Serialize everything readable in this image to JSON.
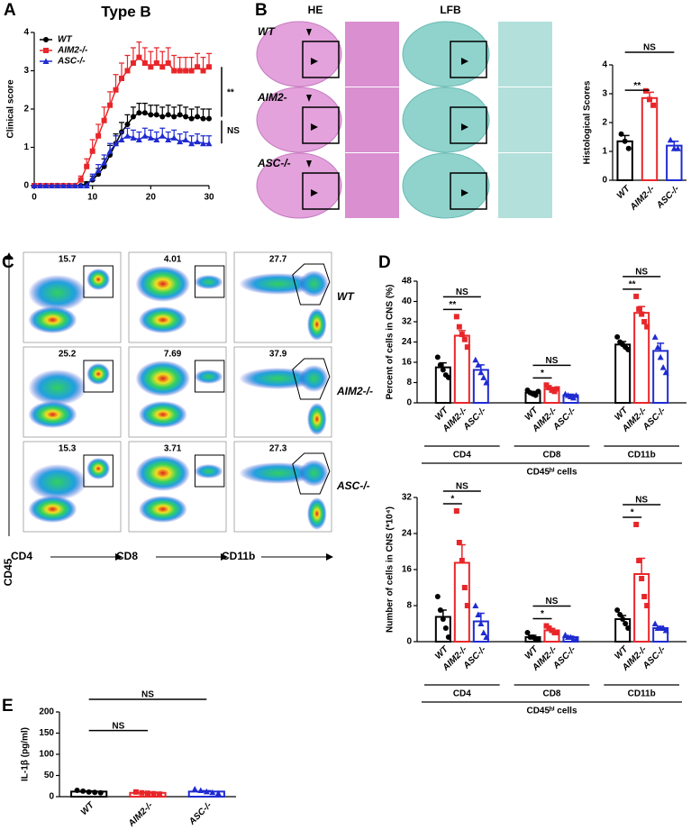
{
  "panel_labels": [
    "A",
    "B",
    "C",
    "D",
    "E"
  ],
  "histology": {
    "stains": [
      "HE",
      "LFB"
    ],
    "rows": [
      "WT",
      "AIM2-",
      "ASC-/-"
    ]
  },
  "flow": {
    "y_label": "CD45",
    "x_labels": [
      "CD4",
      "CD8",
      "CD11b"
    ],
    "rows": [
      "WT",
      "AIM2-/-",
      "ASC-/-"
    ],
    "gate_values": [
      [
        15.7,
        4.01,
        27.7
      ],
      [
        25.2,
        7.69,
        37.9
      ],
      [
        15.3,
        3.71,
        27.3
      ]
    ]
  },
  "chart_data": [
    {
      "type": "line",
      "title": "Type B",
      "y_label": "Clinical score",
      "x": [
        0,
        1,
        2,
        3,
        4,
        5,
        6,
        7,
        8,
        9,
        10,
        11,
        12,
        13,
        14,
        15,
        16,
        17,
        18,
        19,
        20,
        21,
        22,
        23,
        24,
        25,
        26,
        27,
        28,
        29,
        30
      ],
      "xlim": [
        0,
        30
      ],
      "xticks": [
        0,
        10,
        20,
        30
      ],
      "ylim": [
        0,
        4
      ],
      "yticks": [
        0,
        1,
        2,
        3,
        4
      ],
      "series": [
        {
          "name": "WT",
          "color": "#000000",
          "marker": "circle",
          "values": [
            0,
            0,
            0,
            0,
            0,
            0,
            0,
            0,
            0,
            0.05,
            0.15,
            0.3,
            0.5,
            0.8,
            1.1,
            1.4,
            1.6,
            1.8,
            1.9,
            1.9,
            1.85,
            1.85,
            1.8,
            1.85,
            1.8,
            1.85,
            1.8,
            1.75,
            1.8,
            1.75,
            1.75
          ],
          "errors": [
            0,
            0,
            0,
            0,
            0,
            0,
            0,
            0,
            0,
            0.05,
            0.1,
            0.15,
            0.2,
            0.25,
            0.25,
            0.25,
            0.25,
            0.25,
            0.25,
            0.25,
            0.25,
            0.25,
            0.25,
            0.25,
            0.25,
            0.25,
            0.25,
            0.25,
            0.25,
            0.25,
            0.25
          ]
        },
        {
          "name": "AIM2-/-",
          "color": "#e8262a",
          "marker": "square",
          "values": [
            0,
            0,
            0,
            0,
            0,
            0,
            0,
            0,
            0.15,
            0.5,
            0.9,
            1.3,
            1.7,
            2.1,
            2.5,
            2.8,
            3.0,
            3.2,
            3.35,
            3.2,
            3.1,
            3.2,
            3.1,
            3.2,
            3.0,
            3.0,
            3.0,
            3.0,
            3.1,
            3.0,
            3.1
          ],
          "errors": [
            0,
            0,
            0,
            0,
            0,
            0,
            0,
            0,
            0.1,
            0.2,
            0.3,
            0.3,
            0.35,
            0.35,
            0.4,
            0.4,
            0.4,
            0.4,
            0.4,
            0.4,
            0.4,
            0.4,
            0.4,
            0.4,
            0.4,
            0.35,
            0.35,
            0.35,
            0.35,
            0.35,
            0.35
          ]
        },
        {
          "name": "ASC-/-",
          "color": "#1f2bd1",
          "marker": "triangle",
          "values": [
            0,
            0,
            0,
            0,
            0,
            0,
            0,
            0,
            0,
            0,
            0.2,
            0.4,
            0.6,
            0.9,
            1.1,
            1.2,
            1.3,
            1.25,
            1.2,
            1.3,
            1.25,
            1.2,
            1.3,
            1.2,
            1.25,
            1.15,
            1.2,
            1.1,
            1.15,
            1.1,
            1.1
          ],
          "errors": [
            0,
            0,
            0,
            0,
            0,
            0,
            0,
            0,
            0,
            0,
            0.1,
            0.15,
            0.2,
            0.2,
            0.2,
            0.2,
            0.2,
            0.2,
            0.2,
            0.2,
            0.2,
            0.2,
            0.2,
            0.2,
            0.2,
            0.2,
            0.2,
            0.2,
            0.2,
            0.2,
            0.2
          ]
        }
      ],
      "annotations": [
        "**",
        "NS"
      ]
    },
    {
      "type": "bar",
      "y_label": "Histological Scores",
      "categories": [
        "WT",
        "AIM2-/-",
        "ASC-/-"
      ],
      "colors": [
        "#000000",
        "#e8262a",
        "#1f2bd1"
      ],
      "values": [
        1.35,
        2.85,
        1.2
      ],
      "errors": [
        0.2,
        0.2,
        0.15
      ],
      "points": [
        [
          1.6,
          1.35,
          1.1
        ],
        [
          3.1,
          2.8,
          2.6
        ],
        [
          1.4,
          1.1,
          1.1
        ]
      ],
      "ylim": [
        0,
        4
      ],
      "yticks": [
        0,
        1,
        2,
        3,
        4
      ],
      "annotations": [
        "NS",
        "**"
      ]
    },
    {
      "type": "grouped_bar",
      "y_label": "Percent of cells in CNS (%)",
      "groups": [
        "CD4",
        "CD8",
        "CD11b"
      ],
      "group_label": "CD45ʰⁱ cells",
      "ylim": [
        0,
        48
      ],
      "yticks": [
        0,
        8,
        16,
        24,
        32,
        40,
        48
      ],
      "series": [
        {
          "name": "WT",
          "color": "#000000",
          "values": [
            14,
            4,
            23
          ],
          "errors": [
            1.8,
            0.5,
            1.2
          ],
          "points": [
            [
              18,
              15,
              13,
              11,
              10
            ],
            [
              5,
              4,
              3.5,
              3,
              4.5
            ],
            [
              26,
              24,
              23,
              22,
              21
            ]
          ]
        },
        {
          "name": "AIM2-/-",
          "color": "#e8262a",
          "values": [
            26.5,
            5.5,
            35.5
          ],
          "errors": [
            2,
            0.6,
            2.5
          ],
          "points": [
            [
              34,
              30,
              27,
              25,
              22
            ],
            [
              7,
              6,
              5,
              4.5,
              5.5
            ],
            [
              42,
              37,
              35,
              32,
              30
            ]
          ]
        },
        {
          "name": "ASC-/-",
          "color": "#1f2bd1",
          "values": [
            13,
            3,
            20.5
          ],
          "errors": [
            2,
            0.4,
            3
          ],
          "points": [
            [
              17,
              15,
              12,
              10,
              8
            ],
            [
              3.5,
              3,
              2.5,
              2,
              3
            ],
            [
              26,
              22,
              18,
              14,
              12
            ]
          ]
        }
      ],
      "annotations": [
        "NS",
        "**",
        "NS",
        "*",
        "NS",
        "**"
      ]
    },
    {
      "type": "grouped_bar",
      "y_label": "Number of cells in CNS (*10⁴)",
      "groups": [
        "CD4",
        "CD8",
        "CD11b"
      ],
      "group_label": "CD45ʰⁱ cells",
      "ylim": [
        0,
        32
      ],
      "yticks": [
        0,
        8,
        16,
        24,
        32
      ],
      "series": [
        {
          "name": "WT",
          "color": "#000000",
          "values": [
            5.5,
            1,
            5
          ],
          "errors": [
            1.5,
            0.4,
            0.8
          ],
          "points": [
            [
              10,
              7,
              5,
              3,
              1
            ],
            [
              2,
              1,
              1,
              0.5,
              0.5
            ],
            [
              7,
              6,
              5,
              4,
              3
            ]
          ]
        },
        {
          "name": "AIM2-/-",
          "color": "#e8262a",
          "values": [
            17.5,
            2.5,
            15
          ],
          "errors": [
            4,
            0.4,
            3.5
          ],
          "points": [
            [
              29,
              22,
              18,
              12,
              8
            ],
            [
              3.5,
              3,
              2.5,
              2,
              2
            ],
            [
              26,
              18,
              14,
              10,
              8
            ]
          ]
        },
        {
          "name": "ASC-/-",
          "color": "#1f2bd1",
          "values": [
            4.5,
            1,
            3
          ],
          "errors": [
            1.8,
            0.2,
            0.4
          ],
          "points": [
            [
              8,
              6,
              4,
              2,
              1
            ],
            [
              1.5,
              1,
              1,
              0.5,
              0.5
            ],
            [
              4,
              3,
              3,
              3,
              2.5
            ]
          ]
        }
      ],
      "annotations": [
        "NS",
        "*",
        "NS",
        "*",
        "NS",
        "*"
      ]
    },
    {
      "type": "bar",
      "y_label": "IL-1β (pg/ml)",
      "categories": [
        "WT",
        "AIM2-/-",
        "ASC-/-"
      ],
      "colors": [
        "#000000",
        "#e8262a",
        "#1f2bd1"
      ],
      "values": [
        12,
        9,
        12
      ],
      "errors": [
        1.5,
        1,
        2
      ],
      "points": [
        [
          15,
          13,
          11,
          10,
          9
        ],
        [
          11,
          9,
          8,
          7,
          6
        ],
        [
          18,
          15,
          12,
          10,
          8
        ]
      ],
      "ylim": [
        0,
        200
      ],
      "yticks": [
        0,
        50,
        100,
        150,
        200
      ],
      "annotations": [
        "NS",
        "NS"
      ]
    }
  ]
}
